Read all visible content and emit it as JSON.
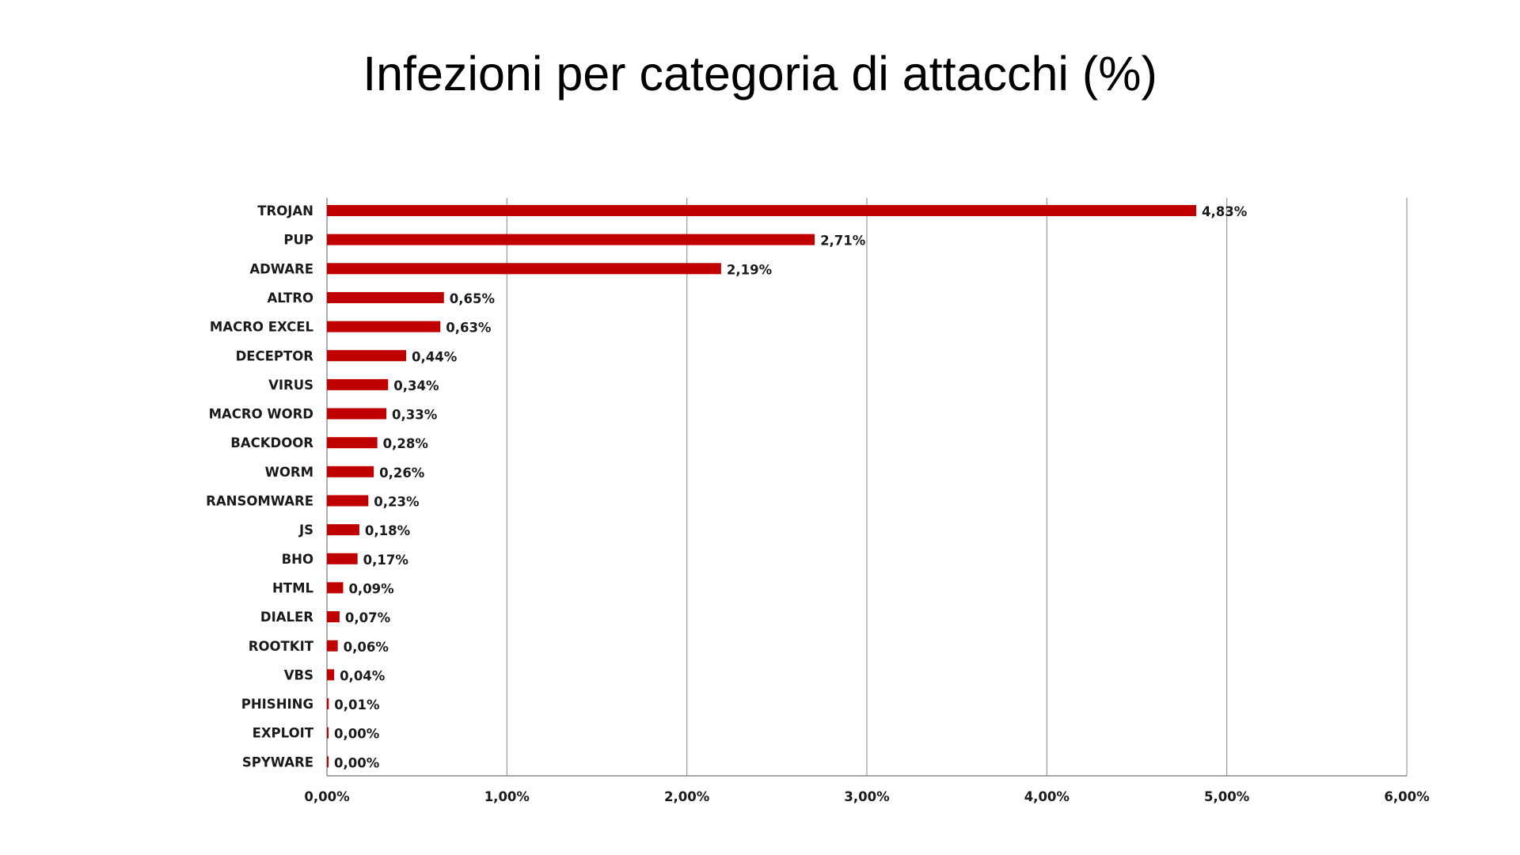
{
  "chart_data": {
    "type": "bar",
    "orientation": "horizontal",
    "title": "Infezioni per categoria di attacchi (%)",
    "xlabel": "",
    "ylabel": "",
    "xlim": [
      0,
      6
    ],
    "grid": true,
    "legend": "none",
    "bar_color": "#c00000",
    "x_ticks": [
      "0,00%",
      "1,00%",
      "2,00%",
      "3,00%",
      "4,00%",
      "5,00%",
      "6,00%"
    ],
    "x_tick_values": [
      0,
      1,
      2,
      3,
      4,
      5,
      6
    ],
    "categories": [
      "TROJAN",
      "PUP",
      "ADWARE",
      "ALTRO",
      "MACRO EXCEL",
      "DECEPTOR",
      "VIRUS",
      "MACRO WORD",
      "BACKDOOR",
      "WORM",
      "RANSOMWARE",
      "JS",
      "BHO",
      "HTML",
      "DIALER",
      "ROOTKIT",
      "VBS",
      "PHISHING",
      "EXPLOIT",
      "SPYWARE"
    ],
    "values": [
      4.83,
      2.71,
      2.19,
      0.65,
      0.63,
      0.44,
      0.34,
      0.33,
      0.28,
      0.26,
      0.23,
      0.18,
      0.17,
      0.09,
      0.07,
      0.06,
      0.04,
      0.01,
      0.0,
      0.0
    ],
    "data_labels": [
      "4,83%",
      "2,71%",
      "2,19%",
      "0,65%",
      "0,63%",
      "0,44%",
      "0,34%",
      "0,33%",
      "0,28%",
      "0,26%",
      "0,23%",
      "0,18%",
      "0,17%",
      "0,09%",
      "0,07%",
      "0,06%",
      "0,04%",
      "0,01%",
      "0,00%",
      "0,00%"
    ]
  }
}
